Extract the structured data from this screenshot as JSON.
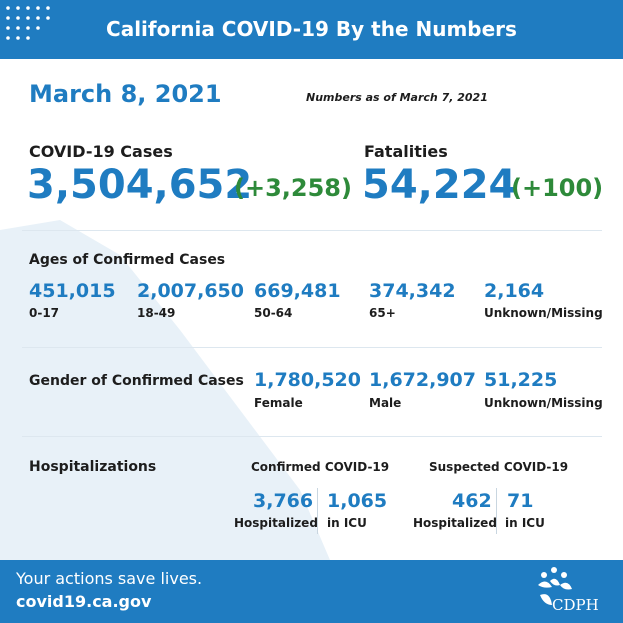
{
  "header": {
    "title": "California COVID-19 By the Numbers",
    "dots_icon": "dot-grid-icon"
  },
  "date": "March 8, 2021",
  "as_of": "Numbers as of March 7, 2021",
  "cases": {
    "label": "COVID-19 Cases",
    "value": "3,504,652",
    "delta": "(+3,258)"
  },
  "fatalities": {
    "label": "Fatalities",
    "value": "54,224",
    "delta": "(+100)"
  },
  "ages": {
    "label": "Ages of Confirmed Cases",
    "groups": [
      {
        "value": "451,015",
        "label": "0-17"
      },
      {
        "value": "2,007,650",
        "label": "18-49"
      },
      {
        "value": "669,481",
        "label": "50-64"
      },
      {
        "value": "374,342",
        "label": "65+"
      },
      {
        "value": "2,164",
        "label": "Unknown/Missing"
      }
    ]
  },
  "gender": {
    "label": "Gender of Confirmed Cases",
    "groups": [
      {
        "value": "1,780,520",
        "label": "Female"
      },
      {
        "value": "1,672,907",
        "label": "Male"
      },
      {
        "value": "51,225",
        "label": "Unknown/Missing"
      }
    ]
  },
  "hospitalizations": {
    "label": "Hospitalizations",
    "confirmed": {
      "label": "Confirmed COVID-19",
      "hospitalized": {
        "value": "3,766",
        "label": "Hospitalized"
      },
      "icu": {
        "value": "1,065",
        "label": "in ICU"
      }
    },
    "suspected": {
      "label": "Suspected COVID-19",
      "hospitalized": {
        "value": "462",
        "label": "Hospitalized"
      },
      "icu": {
        "value": "71",
        "label": "in ICU"
      }
    }
  },
  "footer": {
    "tagline": "Your actions save lives.",
    "site": "covid19.ca.gov",
    "logo_text": "CDPH",
    "logo_icon": "cdph-logo-icon"
  },
  "colors": {
    "primary": "#1f7cc1",
    "delta": "#2e8a3a",
    "text": "#1d1d1d",
    "map": "#e8f1f8"
  }
}
